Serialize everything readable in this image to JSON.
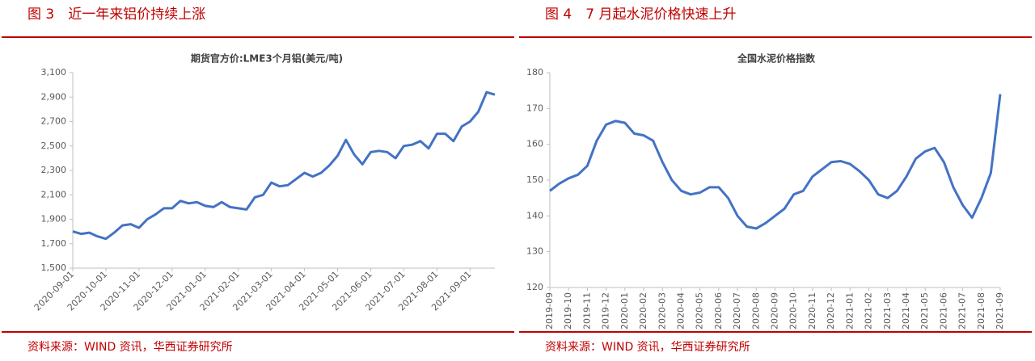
{
  "chart_data": [
    {
      "type": "line",
      "figure_title": "图 3　近一年来铝价持续上涨",
      "title": "期货官方价:LME3个月铝(美元/吨)",
      "categories": [
        "2020-09-01",
        null,
        null,
        null,
        "2020-10-01",
        null,
        null,
        null,
        "2020-11-01",
        null,
        null,
        null,
        "2020-12-01",
        null,
        null,
        null,
        "2021-01-01",
        null,
        null,
        null,
        "2021-02-01",
        null,
        null,
        null,
        "2021-03-01",
        null,
        null,
        null,
        "2021-04-01",
        null,
        null,
        null,
        "2021-05-01",
        null,
        null,
        null,
        "2021-06-01",
        null,
        null,
        null,
        "2021-07-01",
        null,
        null,
        null,
        "2021-08-01",
        null,
        null,
        null,
        "2021-09-01",
        null,
        null,
        null
      ],
      "values": [
        1800,
        1780,
        1790,
        1760,
        1740,
        1790,
        1850,
        1860,
        1830,
        1900,
        1940,
        1990,
        1990,
        2050,
        2030,
        2040,
        2010,
        2000,
        2040,
        2000,
        1990,
        1980,
        2080,
        2100,
        2200,
        2170,
        2180,
        2230,
        2280,
        2250,
        2280,
        2340,
        2420,
        2550,
        2430,
        2350,
        2450,
        2460,
        2450,
        2400,
        2500,
        2510,
        2540,
        2480,
        2600,
        2600,
        2540,
        2660,
        2700,
        2780,
        2940,
        2920
      ],
      "color": "#4472c4",
      "ylim": [
        1500,
        3100
      ],
      "yticks": [
        {
          "value": 1500,
          "label": "1,500"
        },
        {
          "value": 1700,
          "label": "1,700"
        },
        {
          "value": 1900,
          "label": "1,900"
        },
        {
          "value": 2100,
          "label": "2,100"
        },
        {
          "value": 2300,
          "label": "2,300"
        },
        {
          "value": 2500,
          "label": "2,500"
        },
        {
          "value": 2700,
          "label": "2,700"
        },
        {
          "value": 2900,
          "label": "2,900"
        },
        {
          "value": 3100,
          "label": "3,100"
        }
      ],
      "source": "资料来源：WIND 资讯，华西证券研究所"
    },
    {
      "type": "line",
      "figure_title": "图 4　7 月起水泥价格快速上升",
      "title": "全国水泥价格指数",
      "categories": [
        "2019-09",
        null,
        "2019-10",
        null,
        "2019-11",
        null,
        "2019-12",
        null,
        "2020-01",
        null,
        "2020-02",
        null,
        "2020-03",
        null,
        "2020-04",
        null,
        "2020-05",
        null,
        "2020-06",
        null,
        "2020-07",
        null,
        "2020-08",
        null,
        "2020-09",
        null,
        "2020-10",
        null,
        "2020-11",
        null,
        "2020-12",
        null,
        "2021-01",
        null,
        "2021-02",
        null,
        "2021-03",
        null,
        "2021-04",
        null,
        "2021-05",
        null,
        "2021-06",
        null,
        "2021-07",
        null,
        "2021-08",
        null,
        "2021-09"
      ],
      "values": [
        147,
        149,
        150.5,
        151.5,
        154,
        161,
        165.5,
        166.5,
        166,
        163,
        162.5,
        161,
        155,
        150,
        147,
        146,
        146.5,
        148,
        148,
        145,
        140,
        137,
        136.5,
        138,
        140,
        142,
        146,
        147,
        151,
        153,
        155,
        155.3,
        154.5,
        152.5,
        150,
        146,
        145,
        147,
        151,
        156,
        158,
        159,
        155,
        148,
        143,
        139.5,
        145,
        152,
        174
      ],
      "color": "#4472c4",
      "ylim": [
        120,
        180
      ],
      "yticks": [
        120,
        130,
        140,
        150,
        160,
        170,
        180
      ],
      "source": "资料来源：WIND 资讯，华西证券研究所"
    }
  ]
}
